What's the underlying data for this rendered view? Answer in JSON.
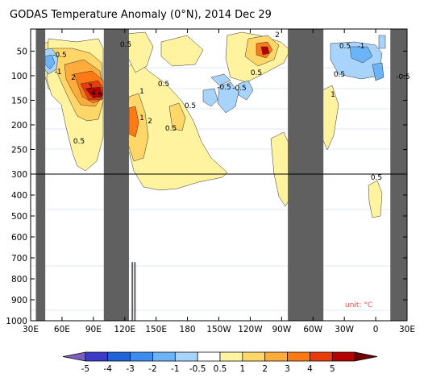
{
  "chart_data": {
    "type": "heatmap",
    "title": "GODAS Temperature Anomaly (0°N), 2014 Dec 29",
    "unit_label": "unit: °C",
    "x_axis": {
      "ticks": [
        {
          "label": "30E",
          "lon": 30
        },
        {
          "label": "60E",
          "lon": 60
        },
        {
          "label": "90E",
          "lon": 90
        },
        {
          "label": "120E",
          "lon": 120
        },
        {
          "label": "150E",
          "lon": 150
        },
        {
          "label": "180",
          "lon": 180
        },
        {
          "label": "150W",
          "lon": 210
        },
        {
          "label": "120W",
          "lon": 240
        },
        {
          "label": "90W",
          "lon": 270
        },
        {
          "label": "60W",
          "lon": 300
        },
        {
          "label": "30W",
          "lon": 330
        },
        {
          "label": "0",
          "lon": 360
        },
        {
          "label": "30E",
          "lon": 390
        }
      ],
      "range": [
        30,
        390
      ]
    },
    "y_axis": {
      "upper_ticks": [
        "50",
        "100",
        "150",
        "200",
        "250",
        "300"
      ],
      "lower_ticks": [
        "300",
        "400",
        "500",
        "600",
        "700",
        "800",
        "900",
        "1000"
      ],
      "upper_range": [
        5,
        300
      ],
      "lower_range": [
        300,
        1000
      ]
    },
    "colorbar": {
      "labels": [
        "-5",
        "-4",
        "-3",
        "-2",
        "-1",
        "-0.5",
        "0.5",
        "1",
        "2",
        "3",
        "4",
        "5"
      ],
      "colors": [
        "#7b5ec2",
        "#3b3bc8",
        "#1e64d8",
        "#3c8cf0",
        "#6cb4f8",
        "#a8d4fc",
        "#ffffff",
        "#fff3a0",
        "#ffd768",
        "#ffac3c",
        "#ff7a14",
        "#e83c0a",
        "#b40000",
        "#6e0000"
      ]
    },
    "land_masks": [
      {
        "lon_start": 35,
        "lon_end": 44,
        "depth_end": 1000
      },
      {
        "lon_start": 100,
        "lon_end": 124,
        "depth_end": 1000
      },
      {
        "lon_start": 276,
        "lon_end": 310,
        "depth_end": 1000
      },
      {
        "lon_start": 374,
        "lon_end": 390,
        "depth_end": 1000
      }
    ],
    "contour_labels": [
      "-0.5",
      "-1",
      "2",
      "3",
      "4",
      "5",
      "0.5",
      "1",
      "2",
      "0.5",
      "0.5",
      "1",
      "0.5",
      "2",
      "-0.5",
      "0.5",
      "-0.5",
      "-1",
      "-0.5",
      "0.5",
      "1",
      "0.5",
      "0.5",
      "0.5"
    ]
  }
}
